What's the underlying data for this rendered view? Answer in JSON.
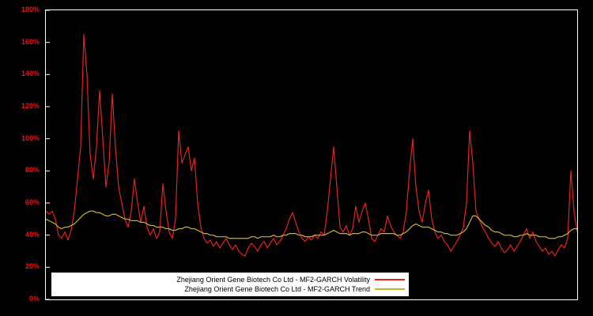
{
  "chart_data": {
    "type": "line",
    "title": "",
    "xlabel": "",
    "ylabel": "",
    "ylim": [
      0,
      180
    ],
    "grid": false,
    "legend_position": "bottom-left-inside",
    "y_ticks": [
      "0%",
      "20%",
      "40%",
      "60%",
      "80%",
      "100%",
      "120%",
      "140%",
      "160%",
      "180%"
    ],
    "colors": {
      "background": "#000000",
      "plot_border": "#ffffff",
      "tick_label": "#ee1111",
      "legend_bg": "#ffffff",
      "legend_text": "#000000"
    },
    "series": [
      {
        "name": "Zhejiang Orient Gene Biotech Co Ltd - MF2-GARCH Volatility",
        "color": "#e32222",
        "unit": "%",
        "values": [
          55,
          53,
          55,
          50,
          40,
          38,
          42,
          37,
          43,
          55,
          75,
          95,
          165,
          140,
          90,
          75,
          95,
          130,
          100,
          70,
          85,
          128,
          95,
          70,
          60,
          50,
          45,
          55,
          75,
          60,
          48,
          58,
          45,
          40,
          44,
          38,
          42,
          72,
          55,
          42,
          38,
          50,
          105,
          85,
          90,
          95,
          80,
          88,
          60,
          45,
          38,
          35,
          37,
          33,
          36,
          32,
          35,
          38,
          34,
          31,
          34,
          30,
          28,
          27,
          32,
          35,
          33,
          30,
          34,
          36,
          32,
          35,
          38,
          34,
          36,
          40,
          44,
          50,
          54,
          48,
          42,
          38,
          36,
          39,
          37,
          40,
          38,
          42,
          40,
          55,
          75,
          95,
          70,
          45,
          42,
          46,
          40,
          44,
          58,
          48,
          55,
          60,
          50,
          38,
          36,
          40,
          44,
          42,
          52,
          46,
          42,
          40,
          38,
          42,
          55,
          80,
          100,
          70,
          55,
          48,
          60,
          68,
          50,
          42,
          38,
          40,
          36,
          34,
          30,
          33,
          36,
          40,
          45,
          60,
          105,
          85,
          55,
          50,
          45,
          42,
          38,
          35,
          33,
          36,
          32,
          29,
          31,
          34,
          30,
          33,
          36,
          40,
          44,
          38,
          42,
          36,
          33,
          30,
          32,
          28,
          30,
          27,
          31,
          34,
          32,
          38,
          80,
          55,
          42
        ]
      },
      {
        "name": "Zhejiang Orient Gene Biotech Co Ltd - MF2-GARCH Trend",
        "color": "#c9b42a",
        "unit": "%",
        "values": [
          50,
          49,
          48,
          47,
          45,
          44,
          45,
          45,
          46,
          47,
          49,
          51,
          53,
          54,
          55,
          55,
          54,
          54,
          53,
          52,
          52,
          53,
          53,
          52,
          51,
          50,
          50,
          49,
          49,
          49,
          48,
          48,
          47,
          46,
          46,
          45,
          45,
          45,
          44,
          44,
          43,
          43,
          44,
          44,
          45,
          45,
          44,
          44,
          43,
          42,
          41,
          41,
          40,
          40,
          39,
          39,
          39,
          39,
          38,
          38,
          38,
          38,
          38,
          38,
          38,
          39,
          39,
          38,
          39,
          39,
          39,
          39,
          40,
          39,
          39,
          40,
          40,
          41,
          41,
          41,
          40,
          40,
          39,
          39,
          39,
          40,
          40,
          40,
          40,
          41,
          42,
          43,
          42,
          41,
          41,
          41,
          40,
          41,
          41,
          41,
          42,
          42,
          41,
          40,
          40,
          40,
          41,
          41,
          41,
          41,
          41,
          40,
          40,
          41,
          42,
          44,
          46,
          47,
          46,
          45,
          45,
          45,
          44,
          43,
          42,
          42,
          41,
          41,
          40,
          40,
          40,
          41,
          42,
          44,
          48,
          52,
          52,
          50,
          48,
          46,
          45,
          43,
          42,
          42,
          41,
          40,
          40,
          40,
          39,
          39,
          40,
          40,
          41,
          40,
          40,
          40,
          39,
          39,
          39,
          38,
          38,
          38,
          39,
          39,
          40,
          41,
          43,
          44,
          44
        ]
      }
    ]
  }
}
